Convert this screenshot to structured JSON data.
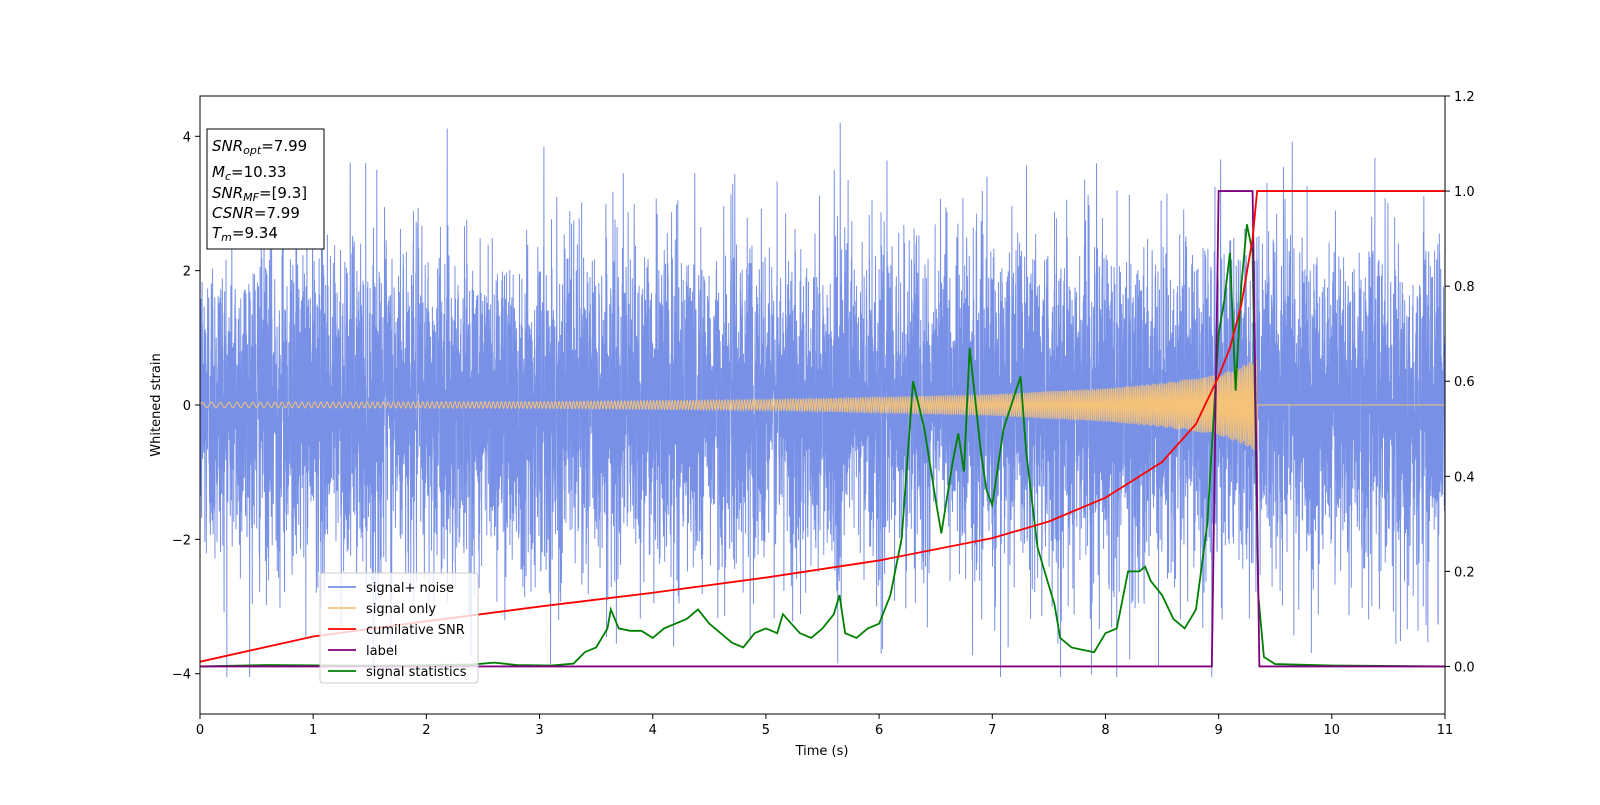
{
  "chart_data": {
    "type": "line",
    "xlabel": "Time (s)",
    "ylabel": "Whitened strain",
    "xlim": [
      0,
      11
    ],
    "ylim": [
      -4.6,
      4.6
    ],
    "y2lim": [
      -0.1,
      1.2
    ],
    "x_ticks": [
      0,
      1,
      2,
      3,
      4,
      5,
      6,
      7,
      8,
      9,
      10,
      11
    ],
    "y_ticks": [
      -4,
      -2,
      0,
      2,
      4
    ],
    "y_tick_labels": [
      "−4",
      "−2",
      "0",
      "2",
      "4"
    ],
    "y2_ticks": [
      0.0,
      0.2,
      0.4,
      0.6,
      0.8,
      1.0,
      1.2
    ],
    "y2_tick_labels": [
      "0.0",
      "0.2",
      "0.4",
      "0.6",
      "0.8",
      "1.0",
      "1.2"
    ],
    "grid": false,
    "legend_placement": "lower-left",
    "annotation": {
      "snr_opt": {
        "name": "SNR",
        "sub": "opt",
        "value": "=7.99"
      },
      "mc": {
        "name": "M",
        "sub": "c",
        "value": "=10.33"
      },
      "snr_mf": {
        "name": "SNR",
        "sub": "MF",
        "value": "=[9.3]"
      },
      "csnr": {
        "name": "CSNR",
        "value": "=7.99"
      },
      "tm": {
        "name": "T",
        "sub": "m",
        "value": "=9.34"
      }
    },
    "series": [
      {
        "name": "signal+ noise",
        "axis": "left",
        "color": "#7891e6",
        "style": "noise",
        "noise_amplitude": {
          "typical": 1.2,
          "peak_max": 4.2,
          "peak_min": -4.05
        }
      },
      {
        "name": "signal only",
        "axis": "left",
        "color": "#f5c27a",
        "style": "chirp",
        "envelope": [
          [
            0,
            0.04
          ],
          [
            3,
            0.05
          ],
          [
            5,
            0.08
          ],
          [
            6,
            0.12
          ],
          [
            7,
            0.16
          ],
          [
            8,
            0.25
          ],
          [
            8.5,
            0.33
          ],
          [
            9.0,
            0.45
          ],
          [
            9.2,
            0.58
          ],
          [
            9.34,
            0.7
          ],
          [
            9.35,
            0
          ]
        ],
        "end": 9.34
      },
      {
        "name": "cumilative SNR",
        "axis": "right",
        "color": "#ff0000",
        "points": [
          [
            0,
            0.01
          ],
          [
            1,
            0.063
          ],
          [
            2,
            0.095
          ],
          [
            3,
            0.126
          ],
          [
            4,
            0.155
          ],
          [
            5,
            0.187
          ],
          [
            6,
            0.223
          ],
          [
            7,
            0.27
          ],
          [
            7.5,
            0.305
          ],
          [
            8,
            0.355
          ],
          [
            8.5,
            0.43
          ],
          [
            8.8,
            0.51
          ],
          [
            9.0,
            0.61
          ],
          [
            9.1,
            0.67
          ],
          [
            9.2,
            0.76
          ],
          [
            9.3,
            0.9
          ],
          [
            9.34,
            1.0
          ],
          [
            11,
            1.0
          ]
        ]
      },
      {
        "name": "label",
        "axis": "right",
        "color": "#800080",
        "points": [
          [
            0,
            0
          ],
          [
            8.94,
            0
          ],
          [
            9.0,
            1.0
          ],
          [
            9.3,
            1.0
          ],
          [
            9.36,
            0
          ],
          [
            11,
            0
          ]
        ]
      },
      {
        "name": "signal statistics",
        "axis": "right",
        "color": "#008000",
        "points": [
          [
            0,
            0.0
          ],
          [
            0.6,
            0.003
          ],
          [
            1.2,
            0.002
          ],
          [
            1.8,
            0.002
          ],
          [
            2.4,
            0.004
          ],
          [
            2.6,
            0.008
          ],
          [
            2.8,
            0.003
          ],
          [
            3.1,
            0.002
          ],
          [
            3.3,
            0.006
          ],
          [
            3.4,
            0.03
          ],
          [
            3.5,
            0.04
          ],
          [
            3.6,
            0.08
          ],
          [
            3.63,
            0.12
          ],
          [
            3.7,
            0.08
          ],
          [
            3.8,
            0.075
          ],
          [
            3.9,
            0.075
          ],
          [
            4.0,
            0.06
          ],
          [
            4.1,
            0.08
          ],
          [
            4.3,
            0.1
          ],
          [
            4.4,
            0.12
          ],
          [
            4.5,
            0.09
          ],
          [
            4.7,
            0.05
          ],
          [
            4.8,
            0.04
          ],
          [
            4.9,
            0.07
          ],
          [
            5.0,
            0.08
          ],
          [
            5.1,
            0.07
          ],
          [
            5.15,
            0.11
          ],
          [
            5.3,
            0.07
          ],
          [
            5.4,
            0.06
          ],
          [
            5.5,
            0.08
          ],
          [
            5.6,
            0.11
          ],
          [
            5.65,
            0.15
          ],
          [
            5.7,
            0.07
          ],
          [
            5.8,
            0.06
          ],
          [
            5.9,
            0.08
          ],
          [
            6.0,
            0.09
          ],
          [
            6.1,
            0.15
          ],
          [
            6.2,
            0.27
          ],
          [
            6.3,
            0.6
          ],
          [
            6.4,
            0.5
          ],
          [
            6.5,
            0.35
          ],
          [
            6.55,
            0.28
          ],
          [
            6.65,
            0.43
          ],
          [
            6.7,
            0.49
          ],
          [
            6.75,
            0.41
          ],
          [
            6.8,
            0.67
          ],
          [
            6.9,
            0.45
          ],
          [
            6.95,
            0.37
          ],
          [
            7.0,
            0.34
          ],
          [
            7.1,
            0.5
          ],
          [
            7.25,
            0.61
          ],
          [
            7.3,
            0.45
          ],
          [
            7.4,
            0.25
          ],
          [
            7.55,
            0.13
          ],
          [
            7.6,
            0.06
          ],
          [
            7.7,
            0.04
          ],
          [
            7.8,
            0.035
          ],
          [
            7.9,
            0.03
          ],
          [
            8.0,
            0.07
          ],
          [
            8.1,
            0.08
          ],
          [
            8.2,
            0.2
          ],
          [
            8.3,
            0.2
          ],
          [
            8.35,
            0.21
          ],
          [
            8.4,
            0.18
          ],
          [
            8.5,
            0.15
          ],
          [
            8.6,
            0.1
          ],
          [
            8.7,
            0.08
          ],
          [
            8.8,
            0.12
          ],
          [
            8.9,
            0.3
          ],
          [
            9.0,
            0.7
          ],
          [
            9.05,
            0.77
          ],
          [
            9.1,
            0.87
          ],
          [
            9.15,
            0.58
          ],
          [
            9.2,
            0.8
          ],
          [
            9.25,
            0.93
          ],
          [
            9.3,
            0.87
          ],
          [
            9.35,
            0.15
          ],
          [
            9.4,
            0.02
          ],
          [
            9.5,
            0.005
          ],
          [
            10.0,
            0.002
          ],
          [
            11,
            0.0
          ]
        ]
      }
    ]
  }
}
